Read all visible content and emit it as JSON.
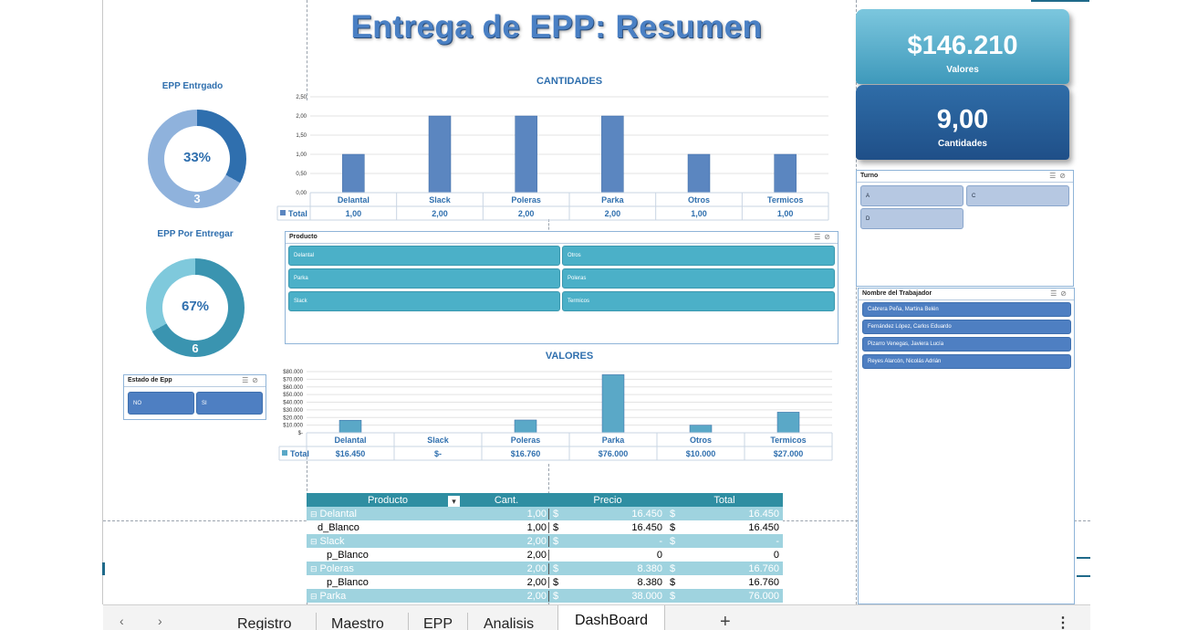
{
  "dashboard": {
    "title": "Entrega de EPP: Resumen"
  },
  "kpis": [
    {
      "value": "$146.210",
      "label": "Valores"
    },
    {
      "value": "9,00",
      "label": "Cantidades"
    }
  ],
  "donuts": [
    {
      "title": "EPP Entrgado",
      "percent_label": "33%",
      "count": "3",
      "fraction": 0.33,
      "color_dark": "#2f6fae",
      "color_light": "#8fb2dc"
    },
    {
      "title": "EPP Por Entregar",
      "percent_label": "67%",
      "count": "6",
      "fraction": 0.67,
      "color_dark": "#3a94b0",
      "color_light": "#7fc9dc"
    }
  ],
  "chart_data": [
    {
      "type": "bar",
      "title": "CANTIDADES",
      "categories": [
        "Delantal",
        "Slack",
        "Poleras",
        "Parka",
        "Otros",
        "Termicos"
      ],
      "series": [
        {
          "name": "Total",
          "values": [
            1,
            2,
            2,
            2,
            1,
            1
          ]
        }
      ],
      "value_labels": [
        "1,00",
        "2,00",
        "2,00",
        "2,00",
        "1,00",
        "1,00"
      ],
      "yticks": [
        "0,00",
        "0,50",
        "1,00",
        "1,50",
        "2,00",
        "2,50"
      ],
      "ylim": [
        0,
        2.5
      ],
      "bar_color": "#5b86c0",
      "grid": true,
      "legend_label": "Total"
    },
    {
      "type": "bar",
      "title": "VALORES",
      "categories": [
        "Delantal",
        "Slack",
        "Poleras",
        "Parka",
        "Otros",
        "Termicos"
      ],
      "series": [
        {
          "name": "Total",
          "values": [
            16450,
            0,
            16760,
            76000,
            10000,
            27000
          ]
        }
      ],
      "value_labels": [
        "$16.450",
        "$-",
        "$16.760",
        "$76.000",
        "$10.000",
        "$27.000"
      ],
      "yticks": [
        "$-",
        "$10.000",
        "$20.000",
        "$30.000",
        "$40.000",
        "$50.000",
        "$60.000",
        "$70.000",
        "$80.000"
      ],
      "ylim": [
        0,
        80000
      ],
      "bar_color": "#5aa8c7",
      "grid": true,
      "legend_label": "Total"
    }
  ],
  "slicers": {
    "producto": {
      "title": "Producto",
      "items": [
        "Delantal",
        "Otros",
        "Parka",
        "Poleras",
        "Slack",
        "Termicos"
      ]
    },
    "estado": {
      "title": "Estado de Epp",
      "items": [
        "NO",
        "SI"
      ]
    },
    "turno": {
      "title": "Turno",
      "items": [
        "A",
        "C",
        "D"
      ]
    },
    "trabajador": {
      "title": "Nombre del Trabajador",
      "items": [
        "Cabrera Peña, Martina Belén",
        "Fernández López, Carlos Eduardo",
        "Pizarro Venegas, Javiera Lucía",
        "Reyes Alarcón, Nicolás Adrián"
      ]
    }
  },
  "pivot": {
    "headers": [
      "Producto",
      "Cant.",
      "Precio",
      "Total"
    ],
    "rows": [
      {
        "kind": "group",
        "label": "Delantal",
        "cant": "1,00",
        "precio_sym": "$",
        "precio": "16.450",
        "total_sym": "$",
        "total": "16.450"
      },
      {
        "kind": "item",
        "label": "d_Blanco",
        "cant": "1,00",
        "precio_sym": "$",
        "precio": "16.450",
        "total_sym": "$",
        "total": "16.450"
      },
      {
        "kind": "group",
        "label": "Slack",
        "cant": "2,00",
        "precio_sym": "$",
        "precio": "-",
        "total_sym": "$",
        "total": "-"
      },
      {
        "kind": "item",
        "label": "p_Blanco",
        "cant": "2,00",
        "precio_sym": "",
        "precio": "0",
        "total_sym": "",
        "total": "0"
      },
      {
        "kind": "group",
        "label": "Poleras",
        "cant": "2,00",
        "precio_sym": "$",
        "precio": "8.380",
        "total_sym": "$",
        "total": "16.760"
      },
      {
        "kind": "item",
        "label": "p_Blanco",
        "cant": "2,00",
        "precio_sym": "$",
        "precio": "8.380",
        "total_sym": "$",
        "total": "16.760"
      },
      {
        "kind": "group",
        "label": "Parka",
        "cant": "2,00",
        "precio_sym": "$",
        "precio": "38.000",
        "total_sym": "$",
        "total": "76.000"
      }
    ],
    "expander": "⊟",
    "filter_icon": "▾"
  },
  "sheet_tabs": {
    "tabs": [
      "Registro",
      "Maestro",
      "EPP",
      "Analisis"
    ],
    "active": "DashBoard",
    "add": "+",
    "prev": "‹",
    "next": "›",
    "more": "⋮"
  }
}
